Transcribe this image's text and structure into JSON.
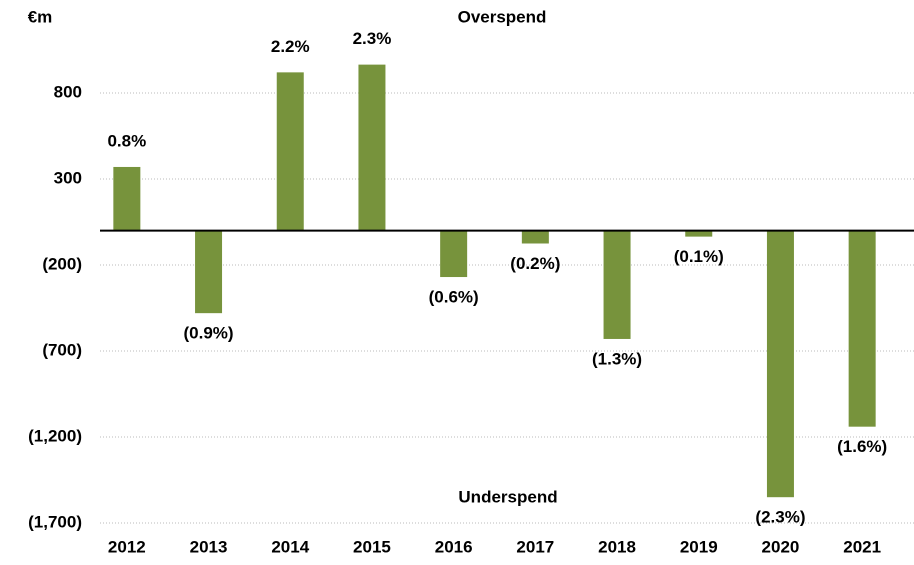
{
  "chart_data": {
    "type": "bar",
    "y_label": "€m",
    "annotations": [
      "Overspend",
      "Underspend"
    ],
    "categories": [
      "2012",
      "2013",
      "2014",
      "2015",
      "2016",
      "2017",
      "2018",
      "2019",
      "2020",
      "2021"
    ],
    "values": [
      370,
      -480,
      920,
      965,
      -270,
      -75,
      -630,
      -35,
      -1550,
      -1140
    ],
    "bar_labels": [
      "0.8%",
      "(0.9%)",
      "2.2%",
      "2.3%",
      "(0.6%)",
      "(0.2%)",
      "(1.3%)",
      "(0.1%)",
      "(2.3%)",
      "(1.6%)"
    ],
    "color": "#77933c",
    "ylim": [
      -1700,
      1300
    ],
    "yticks": [
      800,
      300,
      {
        "value": -200,
        "label": "(200)"
      },
      {
        "value": -700,
        "label": "(700)"
      },
      {
        "value": -1200,
        "label": "(1,200)"
      },
      {
        "value": -1700,
        "label": "(1,700)"
      }
    ],
    "grid": true
  }
}
